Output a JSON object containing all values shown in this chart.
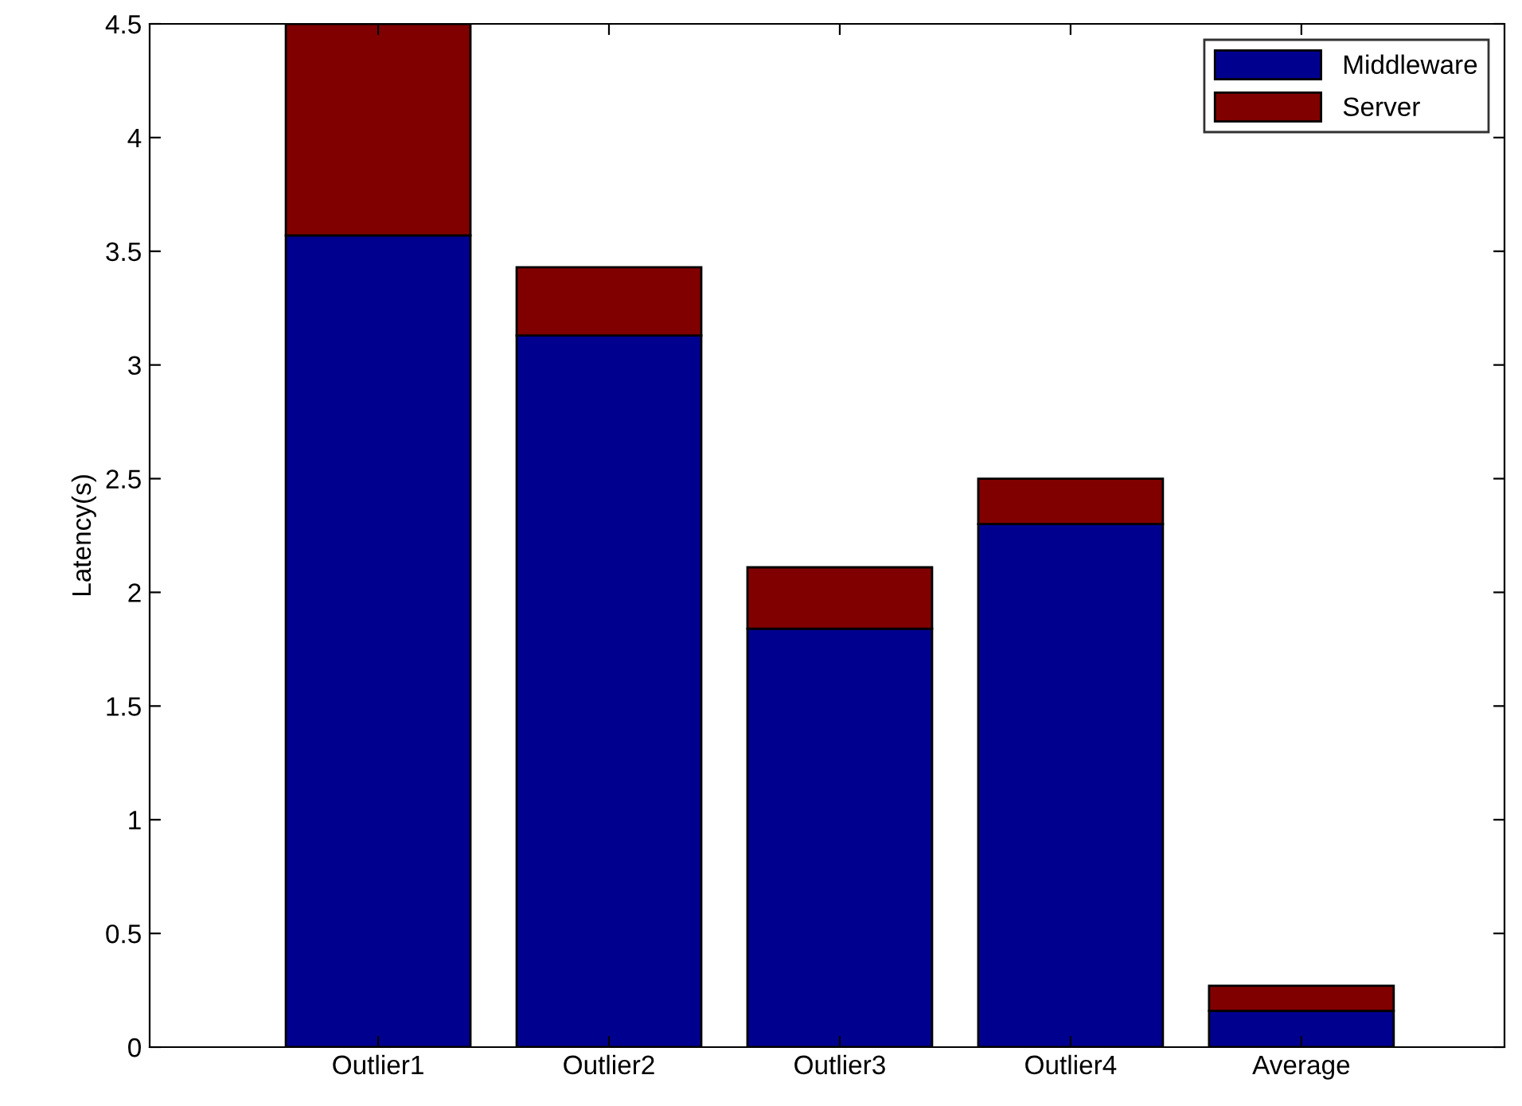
{
  "chart_data": {
    "type": "bar",
    "stacked": true,
    "ylabel": "Latency(s)",
    "categories": [
      "Outlier1",
      "Outlier2",
      "Outlier3",
      "Outlier4",
      "Average"
    ],
    "series": [
      {
        "name": "Middleware",
        "color": "#00008f",
        "values": [
          3.57,
          3.13,
          1.84,
          2.3,
          0.16
        ]
      },
      {
        "name": "Server",
        "color": "#800000",
        "values": [
          0.93,
          0.3,
          0.27,
          0.2,
          0.11
        ]
      }
    ],
    "ylim": [
      0,
      4.5
    ],
    "yticks": [
      0,
      0.5,
      1,
      1.5,
      2,
      2.5,
      3,
      3.5,
      4,
      4.5
    ],
    "grid": false,
    "legend": "top right"
  }
}
